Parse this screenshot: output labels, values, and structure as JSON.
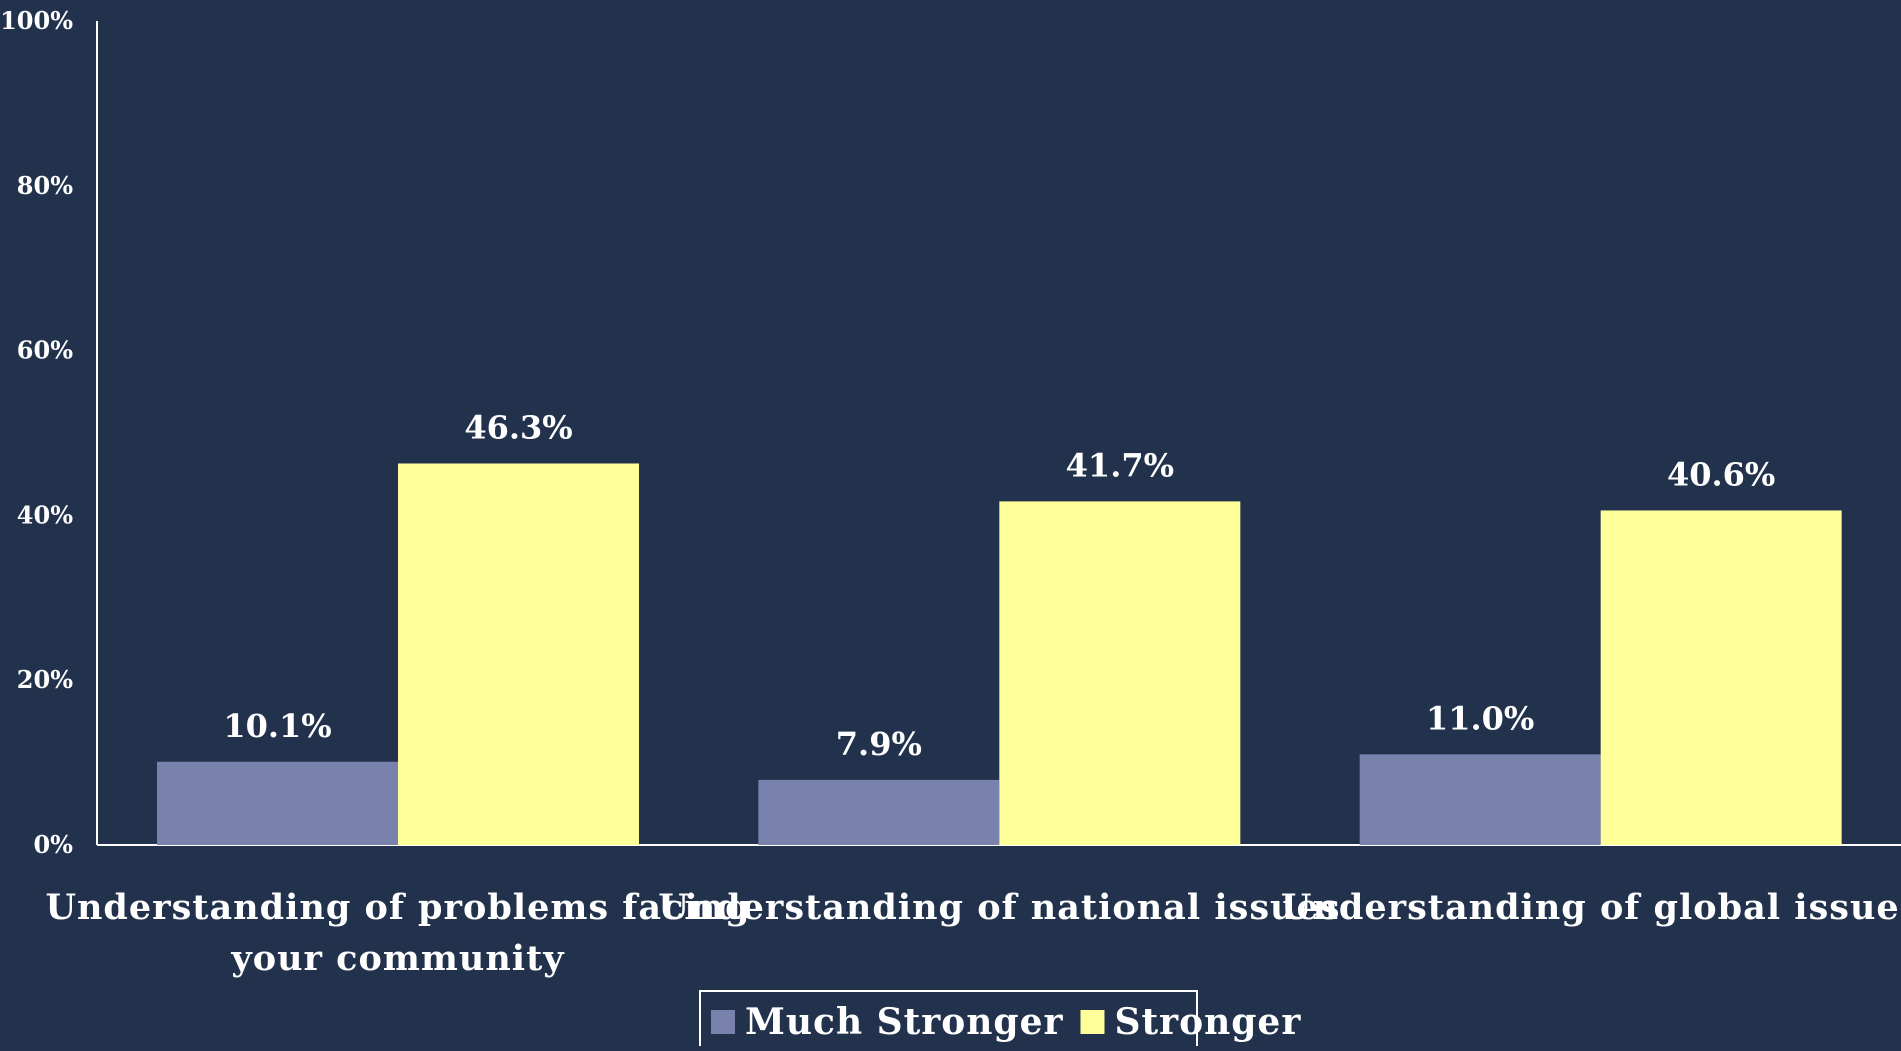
{
  "chart_data": {
    "type": "bar",
    "title": "",
    "xlabel": "",
    "ylabel": "",
    "ylim": [
      0,
      100
    ],
    "y_ticks": [
      "0%",
      "20%",
      "40%",
      "60%",
      "80%",
      "100%"
    ],
    "y_tick_values": [
      0,
      20,
      40,
      60,
      80,
      100
    ],
    "categories": [
      [
        "Understanding of problems facing",
        "your community"
      ],
      [
        "Understanding of national issues"
      ],
      [
        "Understanding of global issues"
      ]
    ],
    "series": [
      {
        "name": "Much Stronger",
        "color": "#7882ad",
        "values": [
          10.1,
          7.9,
          11.0
        ],
        "labels": [
          "10.1%",
          "7.9%",
          "11.0%"
        ]
      },
      {
        "name": "Stronger",
        "color": "#ffff99",
        "values": [
          46.3,
          41.7,
          40.6
        ],
        "labels": [
          "46.3%",
          "41.7%",
          "40.6%"
        ]
      }
    ],
    "grid": false,
    "legend_position": "bottom-center",
    "background": "#22324d",
    "axis_color": "#ffffff"
  }
}
